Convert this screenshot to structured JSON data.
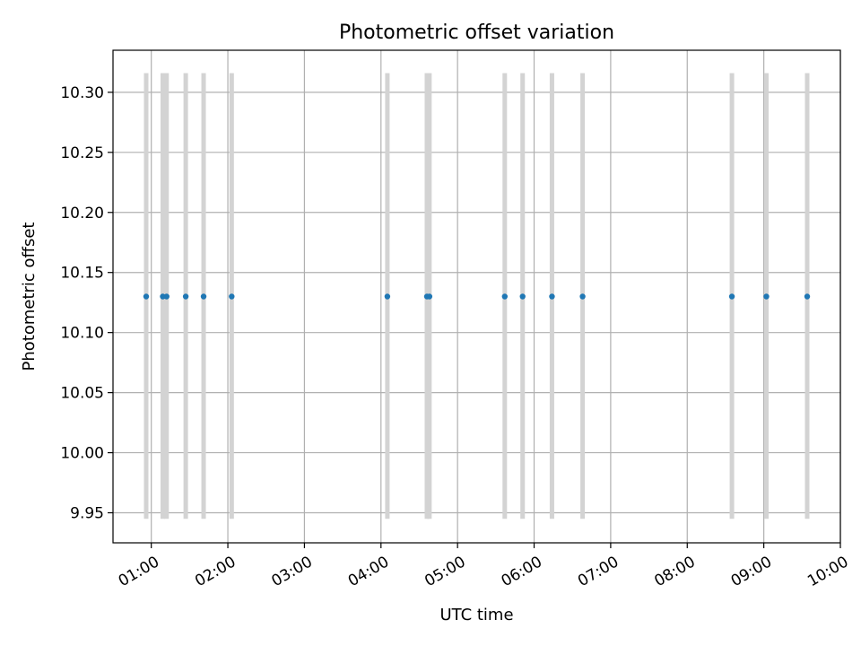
{
  "chart_data": {
    "type": "scatter",
    "title": "Photometric offset variation",
    "xlabel": "UTC time",
    "ylabel": "Photometric offset",
    "xlim": [
      "00:30",
      "10:00"
    ],
    "ylim": [
      9.925,
      10.335
    ],
    "grid": true,
    "x_ticks": [
      "01:00",
      "02:00",
      "03:00",
      "04:00",
      "05:00",
      "06:00",
      "07:00",
      "08:00",
      "09:00",
      "10:00"
    ],
    "y_ticks": [
      "9.95",
      "10.00",
      "10.05",
      "10.10",
      "10.15",
      "10.20",
      "10.25",
      "10.30"
    ],
    "points": [
      {
        "x": "00:56",
        "y": 10.13,
        "yerr_low": 9.945,
        "yerr_high": 10.316
      },
      {
        "x": "01:09",
        "y": 10.13,
        "yerr_low": 9.945,
        "yerr_high": 10.316
      },
      {
        "x": "01:12",
        "y": 10.13,
        "yerr_low": 9.945,
        "yerr_high": 10.316
      },
      {
        "x": "01:27",
        "y": 10.13,
        "yerr_low": 9.945,
        "yerr_high": 10.316
      },
      {
        "x": "01:41",
        "y": 10.13,
        "yerr_low": 9.945,
        "yerr_high": 10.316
      },
      {
        "x": "02:03",
        "y": 10.13,
        "yerr_low": 9.945,
        "yerr_high": 10.316
      },
      {
        "x": "04:05",
        "y": 10.13,
        "yerr_low": 9.945,
        "yerr_high": 10.316
      },
      {
        "x": "04:36",
        "y": 10.13,
        "yerr_low": 9.945,
        "yerr_high": 10.316
      },
      {
        "x": "04:38",
        "y": 10.13,
        "yerr_low": 9.945,
        "yerr_high": 10.316
      },
      {
        "x": "05:37",
        "y": 10.13,
        "yerr_low": 9.945,
        "yerr_high": 10.316
      },
      {
        "x": "05:51",
        "y": 10.13,
        "yerr_low": 9.945,
        "yerr_high": 10.316
      },
      {
        "x": "06:14",
        "y": 10.13,
        "yerr_low": 9.945,
        "yerr_high": 10.316
      },
      {
        "x": "06:38",
        "y": 10.13,
        "yerr_low": 9.945,
        "yerr_high": 10.316
      },
      {
        "x": "08:35",
        "y": 10.13,
        "yerr_low": 9.945,
        "yerr_high": 10.316
      },
      {
        "x": "09:02",
        "y": 10.13,
        "yerr_low": 9.945,
        "yerr_high": 10.316
      },
      {
        "x": "09:34",
        "y": 10.13,
        "yerr_low": 9.945,
        "yerr_high": 10.316
      }
    ],
    "colors": {
      "point": "#1f77b4",
      "errorbar": "#d3d3d3",
      "grid": "#b0b0b0",
      "axes": "#000000"
    }
  }
}
